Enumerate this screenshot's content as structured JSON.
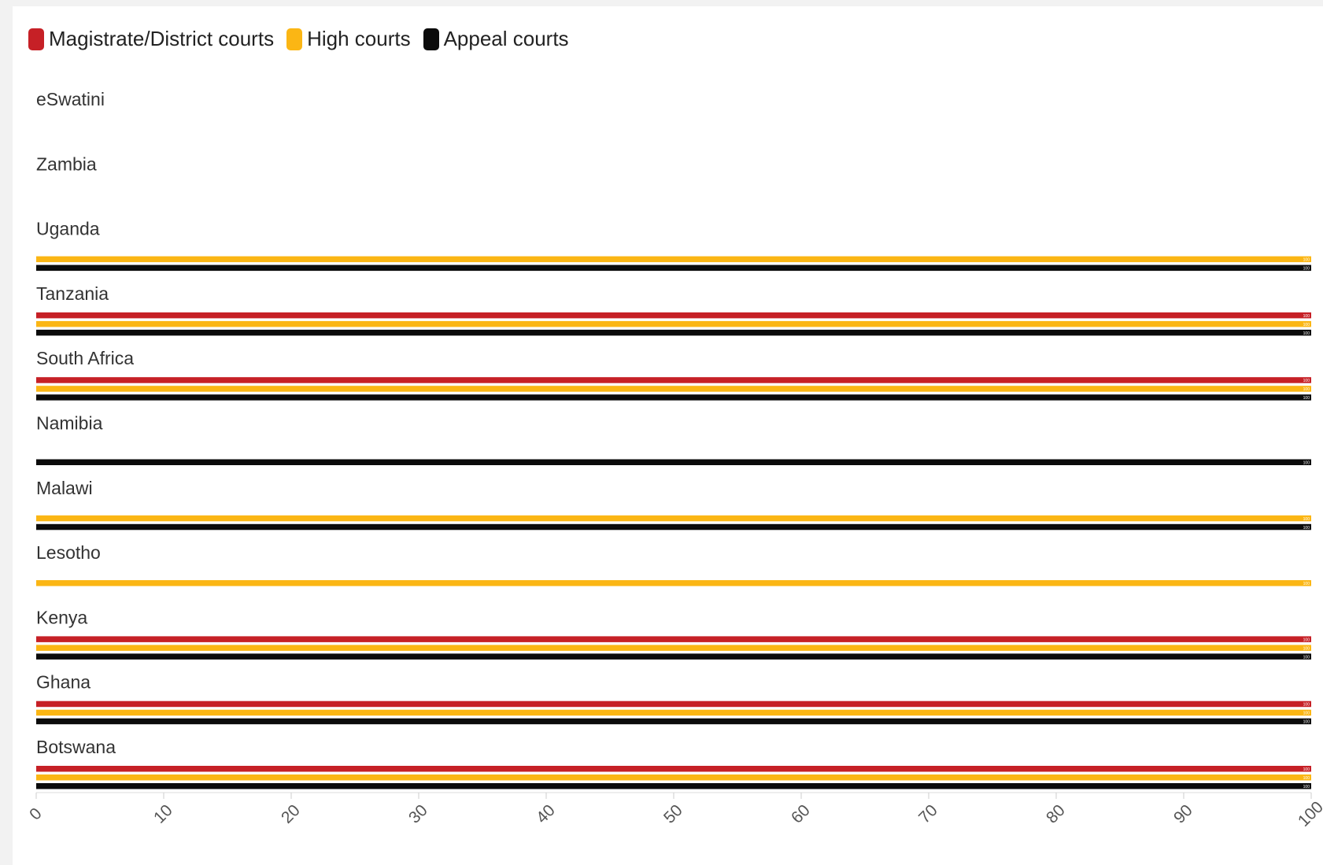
{
  "legend": [
    {
      "name": "Magistrate/District courts",
      "color": "#c62026"
    },
    {
      "name": "High courts",
      "color": "#fbb614"
    },
    {
      "name": "Appeal courts",
      "color": "#0b0b0b"
    }
  ],
  "chart_data": {
    "type": "bar",
    "orientation": "horizontal",
    "categories": [
      "eSwatini",
      "Zambia",
      "Uganda",
      "Tanzania",
      "South Africa",
      "Namibia",
      "Malawi",
      "Lesotho",
      "Kenya",
      "Ghana",
      "Botswana"
    ],
    "series": [
      {
        "name": "Magistrate/District courts",
        "color": "#c62026",
        "values": [
          null,
          null,
          null,
          100,
          100,
          null,
          null,
          null,
          100,
          100,
          100
        ]
      },
      {
        "name": "High courts",
        "color": "#fbb614",
        "values": [
          null,
          null,
          100,
          100,
          100,
          null,
          100,
          100,
          100,
          100,
          100
        ]
      },
      {
        "name": "Appeal courts",
        "color": "#0b0b0b",
        "values": [
          null,
          null,
          100,
          100,
          100,
          100,
          100,
          null,
          100,
          100,
          100
        ]
      }
    ],
    "value_label": "100",
    "xlim": [
      0,
      100
    ],
    "xticks": [
      0,
      10,
      20,
      30,
      40,
      50,
      60,
      70,
      80,
      90,
      100
    ],
    "legend_position": "top-left",
    "grid": false
  }
}
